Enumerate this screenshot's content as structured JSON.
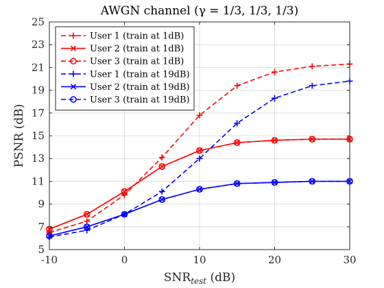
{
  "chart_data": {
    "type": "line",
    "title": "AWGN channel (γ = 1/3, 1/3, 1/3)",
    "xlabel": "SNR",
    "xlabel_sub": "test",
    "xlabel_unit": " (dB)",
    "ylabel": "PSNR (dB)",
    "xlim": [
      -10,
      30
    ],
    "ylim": [
      5,
      25
    ],
    "xticks": [
      -10,
      0,
      10,
      20,
      30
    ],
    "yticks": [
      5,
      7,
      9,
      11,
      13,
      15,
      17,
      19,
      21,
      23,
      25
    ],
    "grid": true,
    "legend_position": "top-left",
    "x": [
      -10,
      -5,
      0,
      5,
      10,
      15,
      20,
      25,
      30
    ],
    "series": [
      {
        "name": "User 1 (train at 1dB)",
        "color": "#ff0000",
        "dash": "dashed",
        "marker": "plus",
        "values": [
          6.5,
          7.5,
          9.8,
          13.1,
          16.8,
          19.4,
          20.6,
          21.1,
          21.3
        ]
      },
      {
        "name": "User 2 (train at 1dB)",
        "color": "#ff0000",
        "dash": "solid",
        "marker": "x",
        "values": [
          6.8,
          8.1,
          10.1,
          12.3,
          13.7,
          14.4,
          14.6,
          14.7,
          14.7
        ]
      },
      {
        "name": "User 3 (train at 1dB)",
        "color": "#ff0000",
        "dash": "dashed",
        "marker": "circle",
        "values": [
          6.8,
          8.1,
          10.1,
          12.3,
          13.7,
          14.4,
          14.6,
          14.7,
          14.7
        ]
      },
      {
        "name": "User 1 (train at 19dB)",
        "color": "#0000ff",
        "dash": "dashed",
        "marker": "plus",
        "values": [
          6.1,
          6.7,
          8.1,
          10.1,
          13.0,
          16.1,
          18.3,
          19.4,
          19.8
        ]
      },
      {
        "name": "User 2 (train at 19dB)",
        "color": "#0000ff",
        "dash": "solid",
        "marker": "x",
        "values": [
          6.2,
          7.0,
          8.1,
          9.4,
          10.3,
          10.8,
          10.9,
          11.0,
          11.0
        ]
      },
      {
        "name": "User 3 (train at 19dB)",
        "color": "#0000ff",
        "dash": "dashed",
        "marker": "circle",
        "values": [
          6.2,
          7.0,
          8.1,
          9.4,
          10.3,
          10.8,
          10.9,
          11.0,
          11.0
        ]
      }
    ]
  }
}
